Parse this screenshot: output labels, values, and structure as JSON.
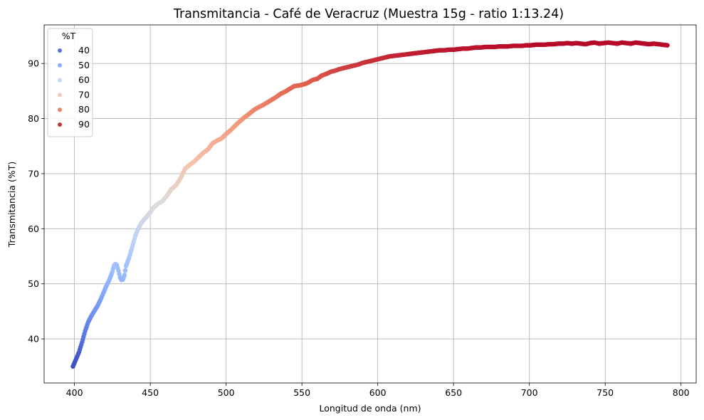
{
  "chart_data": {
    "type": "scatter",
    "title": "Transmitancia - Café de Veracruz (Muestra 15g - ratio 1:13.24)",
    "xlabel": "Longitud de onda (nm)",
    "ylabel": "Transmitancia (%T)",
    "xlim": [
      380,
      810
    ],
    "ylim": [
      32,
      97
    ],
    "xticks": [
      400,
      450,
      500,
      550,
      600,
      650,
      700,
      750,
      800
    ],
    "yticks": [
      40,
      50,
      60,
      70,
      80,
      90
    ],
    "grid": true,
    "colormap": "coolwarm",
    "hue_range": [
      35,
      94
    ],
    "legend": {
      "title": "%T",
      "position": "top-left",
      "entries": [
        {
          "label": "40",
          "value": 40,
          "color": "#5673e0"
        },
        {
          "label": "50",
          "value": 50,
          "color": "#88abfd"
        },
        {
          "label": "60",
          "value": 60,
          "color": "#c5d6f2"
        },
        {
          "label": "70",
          "value": 70,
          "color": "#f2c9b4"
        },
        {
          "label": "80",
          "value": 80,
          "color": "#ec8165"
        },
        {
          "label": "90",
          "value": 90,
          "color": "#c73635"
        }
      ]
    },
    "x": [
      399,
      401,
      403,
      405,
      407,
      409,
      411,
      413,
      415,
      417,
      419,
      421,
      423,
      425,
      426,
      427,
      428,
      429,
      430,
      431,
      432,
      433,
      434,
      436,
      438,
      440,
      442,
      444,
      446,
      448,
      450,
      452,
      455,
      458,
      461,
      464,
      467,
      470,
      473,
      476,
      479,
      482,
      485,
      488,
      491,
      494,
      497,
      500,
      503,
      506,
      509,
      512,
      515,
      518,
      521,
      524,
      527,
      530,
      533,
      536,
      539,
      542,
      545,
      548,
      551,
      554,
      557,
      560,
      563,
      566,
      569,
      572,
      575,
      578,
      581,
      584,
      587,
      590,
      593,
      596,
      599,
      602,
      605,
      608,
      611,
      614,
      617,
      620,
      623,
      626,
      629,
      632,
      635,
      638,
      641,
      644,
      647,
      650,
      653,
      656,
      659,
      662,
      665,
      668,
      671,
      674,
      677,
      680,
      683,
      686,
      689,
      692,
      695,
      698,
      701,
      704,
      707,
      710,
      713,
      716,
      719,
      722,
      725,
      728,
      731,
      734,
      737,
      740,
      743,
      746,
      749,
      752,
      755,
      758,
      761,
      764,
      767,
      770,
      773,
      776,
      779,
      782,
      785,
      788,
      791
    ],
    "y": [
      35.0,
      36.3,
      37.6,
      39.4,
      41.4,
      43.0,
      44.1,
      45.0,
      45.9,
      47.0,
      48.3,
      49.6,
      50.7,
      52.2,
      53.3,
      53.6,
      53.4,
      52.4,
      51.2,
      50.7,
      50.8,
      51.6,
      53.2,
      54.7,
      56.6,
      58.6,
      60.0,
      61.0,
      61.7,
      62.3,
      63.0,
      63.8,
      64.5,
      65.0,
      66.0,
      67.2,
      67.9,
      69.2,
      70.9,
      71.6,
      72.2,
      73.0,
      73.8,
      74.4,
      75.5,
      76.0,
      76.4,
      77.2,
      77.9,
      78.7,
      79.5,
      80.2,
      80.8,
      81.5,
      82.0,
      82.4,
      82.9,
      83.4,
      83.9,
      84.5,
      84.9,
      85.4,
      85.9,
      86.0,
      86.2,
      86.5,
      87.0,
      87.2,
      87.8,
      88.1,
      88.5,
      88.7,
      89.0,
      89.2,
      89.4,
      89.6,
      89.8,
      90.1,
      90.3,
      90.5,
      90.7,
      90.9,
      91.1,
      91.3,
      91.4,
      91.5,
      91.6,
      91.7,
      91.8,
      91.9,
      92.0,
      92.1,
      92.2,
      92.3,
      92.4,
      92.4,
      92.5,
      92.5,
      92.6,
      92.7,
      92.7,
      92.8,
      92.9,
      92.9,
      93.0,
      93.0,
      93.0,
      93.1,
      93.1,
      93.1,
      93.2,
      93.2,
      93.2,
      93.3,
      93.3,
      93.4,
      93.4,
      93.4,
      93.5,
      93.5,
      93.6,
      93.6,
      93.7,
      93.6,
      93.7,
      93.6,
      93.5,
      93.7,
      93.8,
      93.6,
      93.7,
      93.8,
      93.7,
      93.6,
      93.8,
      93.7,
      93.6,
      93.8,
      93.7,
      93.6,
      93.5,
      93.6,
      93.5,
      93.4,
      93.3
    ]
  }
}
